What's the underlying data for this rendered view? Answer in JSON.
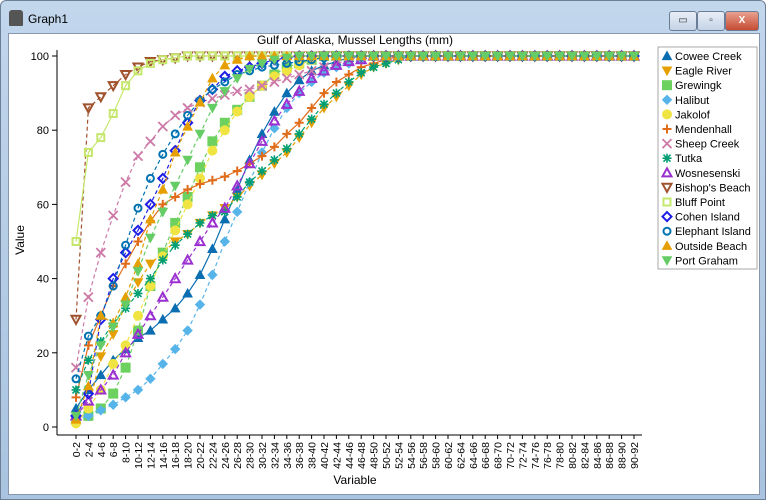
{
  "window": {
    "title": "Graph1",
    "minimize": "▭",
    "maximize": "▫",
    "close": "X"
  },
  "chart_data": {
    "type": "line",
    "title": "Gulf of Alaska, Mussel Lengths (mm)",
    "xlabel": "Variable",
    "ylabel": "Value",
    "ylim": [
      0,
      100
    ],
    "yticks": [
      0,
      20,
      40,
      60,
      80,
      100
    ],
    "legend_position": "right",
    "categories": [
      "0-2",
      "2-4",
      "4-6",
      "6-8",
      "8-10",
      "10-12",
      "12-14",
      "14-16",
      "16-18",
      "18-20",
      "20-22",
      "22-24",
      "24-26",
      "26-28",
      "28-30",
      "30-32",
      "32-34",
      "34-36",
      "36-38",
      "38-40",
      "40-42",
      "42-44",
      "44-46",
      "46-48",
      "48-50",
      "50-52",
      "52-54",
      "54-56",
      "56-58",
      "58-60",
      "60-62",
      "62-64",
      "64-66",
      "66-68",
      "68-70",
      "70-72",
      "72-74",
      "74-76",
      "76-78",
      "78-80",
      "80-82",
      "82-84",
      "84-86",
      "86-88",
      "88-90",
      "90-92"
    ],
    "series": [
      {
        "name": "Cowee Creek",
        "color": "#0a6eb0",
        "marker": "triangle-up",
        "dashed": false,
        "values": [
          5,
          10,
          14,
          18,
          21,
          24,
          26,
          29,
          32,
          36,
          41,
          48,
          56,
          64,
          72,
          79,
          85,
          90,
          93.5,
          96,
          97.5,
          98.5,
          99.5,
          100,
          100,
          100,
          100,
          100,
          100,
          100,
          100,
          100,
          100,
          100,
          100,
          100,
          100,
          100,
          100,
          100,
          100,
          100,
          100,
          100,
          100,
          100
        ]
      },
      {
        "name": "Eagle River",
        "color": "#e69f00",
        "marker": "triangle-down",
        "dashed": true,
        "values": [
          1,
          5,
          19,
          25,
          33,
          39,
          44,
          47,
          50,
          52,
          55,
          57,
          59,
          62,
          65,
          68,
          71,
          74,
          78,
          82,
          86,
          89,
          92,
          95,
          97,
          98,
          99,
          100,
          100,
          100,
          100,
          100,
          100,
          100,
          100,
          100,
          100,
          100,
          100,
          100,
          100,
          100,
          100,
          100,
          100,
          100
        ]
      },
      {
        "name": "Grewingk",
        "color": "#6cd15f",
        "marker": "square",
        "dashed": true,
        "values": [
          2,
          3,
          5,
          9,
          16,
          26,
          38,
          47,
          55,
          62,
          70,
          77,
          82,
          85.5,
          89,
          92,
          95,
          97,
          98,
          99,
          100,
          100,
          100,
          100,
          100,
          100,
          100,
          100,
          100,
          100,
          100,
          100,
          100,
          100,
          100,
          100,
          100,
          100,
          100,
          100,
          100,
          100,
          100,
          100,
          100,
          100
        ]
      },
      {
        "name": "Halibut",
        "color": "#56b4e9",
        "marker": "diamond",
        "dashed": true,
        "values": [
          2,
          3,
          4.5,
          6,
          8,
          10,
          13,
          17,
          21,
          26,
          33,
          41,
          50,
          58,
          66,
          74,
          80.5,
          86,
          90,
          93,
          95.5,
          97,
          98,
          99,
          100,
          100,
          100,
          100,
          100,
          100,
          100,
          100,
          100,
          100,
          100,
          100,
          100,
          100,
          100,
          100,
          100,
          100,
          100,
          100,
          100,
          100
        ]
      },
      {
        "name": "Jakolof",
        "color": "#f0e442",
        "marker": "circle",
        "dashed": true,
        "values": [
          1,
          5,
          10,
          17,
          22,
          30,
          38,
          46,
          53,
          60,
          67,
          74.5,
          80,
          85,
          89,
          92,
          94.5,
          96,
          97.5,
          99,
          100,
          100,
          100,
          100,
          100,
          100,
          100,
          100,
          100,
          100,
          100,
          100,
          100,
          100,
          100,
          100,
          100,
          100,
          100,
          100,
          100,
          100,
          100,
          100,
          100,
          100
        ]
      },
      {
        "name": "Mendenhall",
        "color": "#e06c1a",
        "marker": "plus",
        "dashed": false,
        "values": [
          8,
          22,
          30,
          38,
          44,
          50,
          55.5,
          60,
          62,
          64,
          65.5,
          66.5,
          67.5,
          69,
          71,
          73,
          75.5,
          79,
          82,
          86,
          90,
          93,
          95,
          97,
          98,
          99,
          100,
          100,
          100,
          100,
          100,
          100,
          100,
          100,
          100,
          100,
          100,
          100,
          100,
          100,
          100,
          100,
          100,
          100,
          100,
          100
        ]
      },
      {
        "name": "Sheep Creek",
        "color": "#cc79a7",
        "marker": "x",
        "dashed": true,
        "values": [
          16,
          35,
          47,
          57,
          66,
          73,
          77,
          81,
          84,
          86,
          87.5,
          88.5,
          89.5,
          90.5,
          91,
          92,
          93,
          94,
          95,
          96,
          97,
          98,
          99,
          100,
          100,
          100,
          100,
          100,
          100,
          100,
          100,
          100,
          100,
          100,
          100,
          100,
          100,
          100,
          100,
          100,
          100,
          100,
          100,
          100,
          100,
          100
        ]
      },
      {
        "name": "Tutka",
        "color": "#009e73",
        "marker": "asterisk",
        "dashed": true,
        "values": [
          10,
          18,
          23,
          28,
          32,
          36,
          40,
          45,
          49,
          52,
          55,
          57,
          58,
          62,
          66,
          69,
          72,
          75,
          79,
          83,
          87,
          90,
          93,
          95.5,
          97,
          98,
          99,
          100,
          100,
          100,
          100,
          100,
          100,
          100,
          100,
          100,
          100,
          100,
          100,
          100,
          100,
          100,
          100,
          100,
          100,
          100
        ]
      },
      {
        "name": "Wosnesenski",
        "color": "#9b30d0",
        "marker": "triangle-up-open",
        "dashed": true,
        "values": [
          3,
          7,
          10,
          14,
          20,
          25,
          30,
          35,
          40,
          45,
          50,
          55,
          59,
          65,
          71,
          77,
          82.5,
          87,
          90.5,
          94,
          96,
          97.5,
          98.5,
          99,
          100,
          100,
          100,
          100,
          100,
          100,
          100,
          100,
          100,
          100,
          100,
          100,
          100,
          100,
          100,
          100,
          100,
          100,
          100,
          100,
          100,
          100
        ]
      },
      {
        "name": "Bishop's Beach",
        "color": "#a0522d",
        "marker": "triangle-down-open",
        "dashed": true,
        "values": [
          29,
          86,
          89,
          92,
          95,
          97,
          98.5,
          99,
          99.5,
          100,
          100,
          100,
          100,
          100,
          100,
          100,
          100,
          100,
          100,
          100,
          100,
          100,
          100,
          100,
          100,
          100,
          100,
          100,
          100,
          100,
          100,
          100,
          100,
          100,
          100,
          100,
          100,
          100,
          100,
          100,
          100,
          100,
          100,
          100,
          100,
          100
        ]
      },
      {
        "name": "Bluff Point",
        "color": "#c5e86c",
        "marker": "square-open",
        "dashed": false,
        "values": [
          50,
          74,
          78,
          84.5,
          92,
          96,
          98,
          99,
          99.5,
          100,
          100,
          100,
          100,
          100,
          100,
          100,
          100,
          100,
          100,
          100,
          100,
          100,
          100,
          100,
          100,
          100,
          100,
          100,
          100,
          100,
          100,
          100,
          100,
          100,
          100,
          100,
          100,
          100,
          100,
          100,
          100,
          100,
          100,
          100,
          100,
          100
        ]
      },
      {
        "name": "Cohen Island",
        "color": "#1e1ee6",
        "marker": "diamond-open",
        "dashed": true,
        "values": [
          3,
          9,
          29,
          40,
          47,
          53,
          60,
          67,
          74.5,
          82,
          88,
          91,
          94.5,
          96,
          97,
          98,
          99,
          99.5,
          100,
          100,
          100,
          100,
          100,
          100,
          100,
          100,
          100,
          100,
          100,
          100,
          100,
          100,
          100,
          100,
          100,
          100,
          100,
          100,
          100,
          100,
          100,
          100,
          100,
          100,
          100,
          100
        ]
      },
      {
        "name": "Elephant Island",
        "color": "#0072b2",
        "marker": "circle-open",
        "dashed": true,
        "values": [
          13,
          24.5,
          30,
          38,
          49,
          59,
          67,
          73.5,
          79,
          84,
          88,
          91,
          93,
          95,
          96,
          97,
          97.5,
          98,
          98.5,
          99,
          99.5,
          100,
          100,
          100,
          100,
          100,
          100,
          100,
          100,
          100,
          100,
          100,
          100,
          100,
          100,
          100,
          100,
          100,
          100,
          100,
          100,
          100,
          100,
          100,
          100,
          100
        ]
      },
      {
        "name": "Outside Beach",
        "color": "#e69f00",
        "marker": "triangle-up",
        "dashed": true,
        "values": [
          2,
          11,
          30,
          28,
          35,
          44,
          56,
          64,
          74,
          81,
          87.5,
          94,
          97.5,
          99,
          100,
          100,
          100,
          100,
          100,
          100,
          100,
          100,
          100,
          100,
          100,
          100,
          100,
          100,
          100,
          100,
          100,
          100,
          100,
          100,
          100,
          100,
          100,
          100,
          100,
          100,
          100,
          100,
          100,
          100,
          100,
          100
        ]
      },
      {
        "name": "Port Graham",
        "color": "#66cc66",
        "marker": "triangle-down",
        "dashed": true,
        "values": [
          3,
          14,
          22,
          27,
          33,
          42,
          51,
          58,
          65,
          72,
          79,
          86,
          90.5,
          94,
          96.5,
          98,
          99,
          99.5,
          100,
          100,
          100,
          100,
          100,
          100,
          100,
          100,
          100,
          100,
          100,
          100,
          100,
          100,
          100,
          100,
          100,
          100,
          100,
          100,
          100,
          100,
          100,
          100,
          100,
          100,
          100,
          100
        ]
      }
    ]
  }
}
